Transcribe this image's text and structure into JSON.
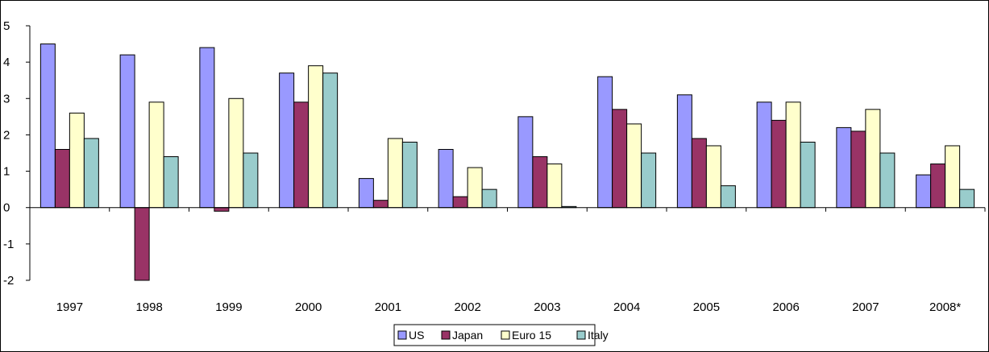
{
  "chart_data": {
    "type": "bar",
    "title": "",
    "xlabel": "",
    "ylabel": "",
    "ylim": [
      -2,
      5
    ],
    "yticks": [
      -2,
      -1,
      0,
      1,
      2,
      3,
      4,
      5
    ],
    "ytick_labels": [
      "-2",
      "-1",
      "0",
      "1",
      "2",
      "3",
      "4",
      "5"
    ],
    "categories": [
      "1997",
      "1998",
      "1999",
      "2000",
      "2001",
      "2002",
      "2003",
      "2004",
      "2005",
      "2006",
      "2007",
      "2008*"
    ],
    "series": [
      {
        "name": "US",
        "color": "#9999FF",
        "values": [
          4.5,
          4.2,
          4.4,
          3.7,
          0.8,
          1.6,
          2.5,
          3.6,
          3.1,
          2.9,
          2.2,
          0.9
        ]
      },
      {
        "name": "Japan",
        "color": "#993366",
        "values": [
          1.6,
          -2.0,
          -0.1,
          2.9,
          0.2,
          0.3,
          1.4,
          2.7,
          1.9,
          2.4,
          2.1,
          1.2
        ]
      },
      {
        "name": "Euro 15",
        "color": "#FFFFCC",
        "values": [
          2.6,
          2.9,
          3.0,
          3.9,
          1.9,
          1.1,
          1.2,
          2.3,
          1.7,
          2.9,
          2.7,
          1.7
        ]
      },
      {
        "name": "Italy",
        "color": "#99CCCC",
        "values": [
          1.9,
          1.4,
          1.5,
          3.7,
          1.8,
          0.5,
          0.03,
          1.5,
          0.6,
          1.8,
          1.5,
          0.5
        ]
      }
    ],
    "grid": false,
    "legend_position": "bottom-center"
  }
}
